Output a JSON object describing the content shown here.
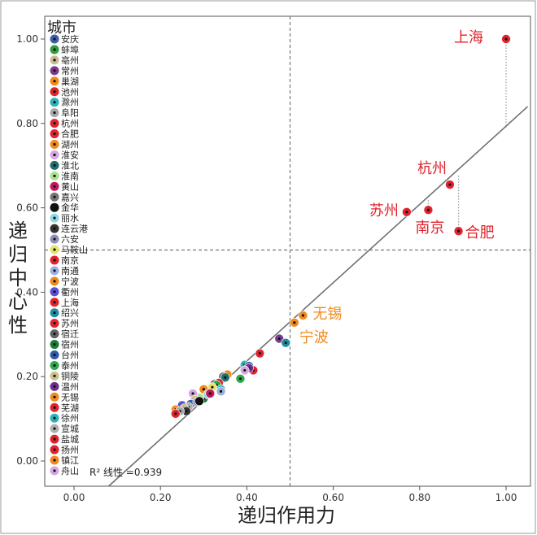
{
  "chart_data": {
    "type": "scatter",
    "xlabel": "递归作用力",
    "ylabel": "递归中心性",
    "xlim": [
      -0.06,
      1.05
    ],
    "ylim": [
      -0.06,
      1.05
    ],
    "x_ticks": [
      "0.00",
      "0.20",
      "0.40",
      "0.60",
      "0.80",
      "1.00"
    ],
    "y_ticks": [
      "0.00",
      "0.20",
      "0.40",
      "0.60",
      "0.80",
      "1.00"
    ],
    "reference_lines": {
      "x": 0.5,
      "y": 0.5
    },
    "fit_line": {
      "x_start": 0.08,
      "y_start": -0.08,
      "x_end": 1.05,
      "y_end": 0.84
    },
    "r2_label": "R² 线性 =0.939",
    "legend": {
      "title": "城市",
      "position": "left",
      "items": [
        {
          "name": "安庆",
          "color": "#3b5fa8"
        },
        {
          "name": "蚌埠",
          "color": "#2e9e3a"
        },
        {
          "name": "亳州",
          "color": "#c8bc93"
        },
        {
          "name": "常州",
          "color": "#7a3b8e"
        },
        {
          "name": "巢湖",
          "color": "#f08a1c"
        },
        {
          "name": "池州",
          "color": "#e0232c"
        },
        {
          "name": "滁州",
          "color": "#2ab3b8"
        },
        {
          "name": "阜阳",
          "color": "#a8a8a8"
        },
        {
          "name": "杭州",
          "color": "#e0232c"
        },
        {
          "name": "合肥",
          "color": "#e0232c"
        },
        {
          "name": "湖州",
          "color": "#f08a1c"
        },
        {
          "name": "淮安",
          "color": "#d5a7e0"
        },
        {
          "name": "淮北",
          "color": "#1f6f6f"
        },
        {
          "name": "淮南",
          "color": "#a9e28d"
        },
        {
          "name": "黄山",
          "color": "#c2185b"
        },
        {
          "name": "嘉兴",
          "color": "#757575"
        },
        {
          "name": "金华",
          "color": "#111111"
        },
        {
          "name": "丽水",
          "color": "#8ed8e6"
        },
        {
          "name": "连云港",
          "color": "#333333"
        },
        {
          "name": "六安",
          "color": "#8e8fb8"
        },
        {
          "name": "马鞍山",
          "color": "#e6e26a"
        },
        {
          "name": "南京",
          "color": "#e0232c"
        },
        {
          "name": "南通",
          "color": "#9ab0e0"
        },
        {
          "name": "宁波",
          "color": "#f08a1c"
        },
        {
          "name": "衢州",
          "color": "#5a4fd6"
        },
        {
          "name": "上海",
          "color": "#e0232c"
        },
        {
          "name": "绍兴",
          "color": "#1e8fa0"
        },
        {
          "name": "苏州",
          "color": "#e0232c"
        },
        {
          "name": "宿迁",
          "color": "#606060"
        },
        {
          "name": "宿州",
          "color": "#1b7a3a"
        },
        {
          "name": "台州",
          "color": "#2e5aa8"
        },
        {
          "name": "泰州",
          "color": "#2ea84a"
        },
        {
          "name": "铜陵",
          "color": "#cbbf8c"
        },
        {
          "name": "温州",
          "color": "#6d2f8e"
        },
        {
          "name": "无锡",
          "color": "#f08a1c"
        },
        {
          "name": "芜湖",
          "color": "#e0232c"
        },
        {
          "name": "徐州",
          "color": "#2ab3b8"
        },
        {
          "name": "宣城",
          "color": "#b0b0b0"
        },
        {
          "name": "盐城",
          "color": "#e0232c"
        },
        {
          "name": "扬州",
          "color": "#e0232c"
        },
        {
          "name": "镇江",
          "color": "#f08a1c"
        },
        {
          "name": "舟山",
          "color": "#d5a7e0"
        }
      ]
    },
    "points": [
      {
        "city": "上海",
        "x": 1.0,
        "y": 1.0,
        "color": "#e0232c",
        "label": "上海",
        "fit_y": 0.79
      },
      {
        "city": "杭州",
        "x": 0.87,
        "y": 0.655,
        "color": "#e0232c",
        "label": "杭州",
        "fit_y": 0.66
      },
      {
        "city": "南京",
        "x": 0.82,
        "y": 0.595,
        "color": "#e0232c",
        "label": "南京",
        "fit_y": 0.62
      },
      {
        "city": "苏州",
        "x": 0.77,
        "y": 0.59,
        "color": "#e0232c",
        "label": "苏州"
      },
      {
        "city": "合肥",
        "x": 0.89,
        "y": 0.545,
        "color": "#e0232c",
        "label": "合肥",
        "fit_y": 0.68
      },
      {
        "city": "无锡",
        "x": 0.53,
        "y": 0.345,
        "color": "#f08a1c",
        "label": "无锡"
      },
      {
        "city": "宁波",
        "x": 0.51,
        "y": 0.328,
        "color": "#f08a1c",
        "label": "宁波"
      },
      {
        "city": "常州",
        "x": 0.475,
        "y": 0.29,
        "color": "#7a3b8e"
      },
      {
        "city": "绍兴",
        "x": 0.49,
        "y": 0.28,
        "color": "#1e8fa0"
      },
      {
        "city": "芜湖",
        "x": 0.43,
        "y": 0.255,
        "color": "#e0232c"
      },
      {
        "city": "徐州",
        "x": 0.395,
        "y": 0.228,
        "color": "#2ab3b8"
      },
      {
        "city": "台州",
        "x": 0.405,
        "y": 0.225,
        "color": "#2e5aa8"
      },
      {
        "city": "扬州",
        "x": 0.415,
        "y": 0.215,
        "color": "#e0232c"
      },
      {
        "city": "温州",
        "x": 0.405,
        "y": 0.22,
        "color": "#6d2f8e"
      },
      {
        "city": "泰州",
        "x": 0.385,
        "y": 0.195,
        "color": "#2ea84a"
      },
      {
        "city": "湖州",
        "x": 0.355,
        "y": 0.205,
        "color": "#f08a1c"
      },
      {
        "city": "嘉兴",
        "x": 0.345,
        "y": 0.2,
        "color": "#757575"
      },
      {
        "city": "淮北",
        "x": 0.35,
        "y": 0.198,
        "color": "#1f6f6f"
      },
      {
        "city": "盐城",
        "x": 0.335,
        "y": 0.185,
        "color": "#e0232c"
      },
      {
        "city": "宿迁",
        "x": 0.325,
        "y": 0.182,
        "color": "#606060"
      },
      {
        "city": "蚌埠",
        "x": 0.33,
        "y": 0.18,
        "color": "#2e9e3a"
      },
      {
        "city": "滁州",
        "x": 0.34,
        "y": 0.17,
        "color": "#2ab3b8"
      },
      {
        "city": "马鞍山",
        "x": 0.32,
        "y": 0.175,
        "color": "#e6e26a"
      },
      {
        "city": "宿州",
        "x": 0.3,
        "y": 0.148,
        "color": "#1b7a3a"
      },
      {
        "city": "南通",
        "x": 0.34,
        "y": 0.165,
        "color": "#9ab0e0"
      },
      {
        "city": "淮南",
        "x": 0.29,
        "y": 0.15,
        "color": "#a9e28d"
      },
      {
        "city": "镇江",
        "x": 0.3,
        "y": 0.17,
        "color": "#f08a1c"
      },
      {
        "city": "淮安",
        "x": 0.275,
        "y": 0.16,
        "color": "#d5a7e0"
      },
      {
        "city": "亳州",
        "x": 0.28,
        "y": 0.145,
        "color": "#c8bc93"
      },
      {
        "city": "衢州",
        "x": 0.25,
        "y": 0.132,
        "color": "#5a4fd6"
      },
      {
        "city": "安庆",
        "x": 0.27,
        "y": 0.135,
        "color": "#3b5fa8"
      },
      {
        "city": "宣城",
        "x": 0.265,
        "y": 0.128,
        "color": "#b0b0b0"
      },
      {
        "city": "铜陵",
        "x": 0.255,
        "y": 0.125,
        "color": "#cbbf8c"
      },
      {
        "city": "巢湖",
        "x": 0.235,
        "y": 0.122,
        "color": "#f08a1c"
      },
      {
        "city": "连云港",
        "x": 0.26,
        "y": 0.118,
        "color": "#333333"
      },
      {
        "city": "阜阳",
        "x": 0.245,
        "y": 0.118,
        "color": "#a8a8a8"
      },
      {
        "city": "池州",
        "x": 0.235,
        "y": 0.112,
        "color": "#e0232c"
      },
      {
        "city": "六安",
        "x": 0.285,
        "y": 0.14,
        "color": "#8e8fb8"
      },
      {
        "city": "丽水",
        "x": 0.31,
        "y": 0.158,
        "color": "#8ed8e6"
      },
      {
        "city": "黄山",
        "x": 0.315,
        "y": 0.16,
        "color": "#c2185b"
      },
      {
        "city": "金华",
        "x": 0.29,
        "y": 0.142,
        "color": "#111111"
      },
      {
        "city": "舟山",
        "x": 0.395,
        "y": 0.215,
        "color": "#d5a7e0"
      }
    ]
  }
}
